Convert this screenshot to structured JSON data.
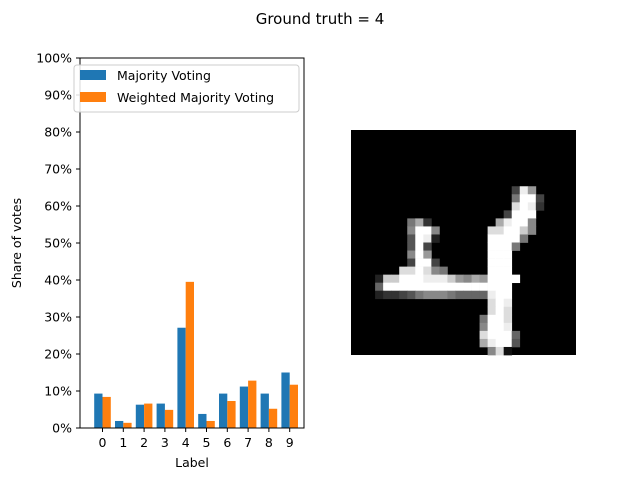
{
  "figure": {
    "suptitle": "Ground truth = 4"
  },
  "chart_data": {
    "type": "bar",
    "categories": [
      "0",
      "1",
      "2",
      "3",
      "4",
      "5",
      "6",
      "7",
      "8",
      "9"
    ],
    "series": [
      {
        "name": "Majority Voting",
        "color": "#1f77b4",
        "values": [
          0.093,
          0.019,
          0.063,
          0.066,
          0.271,
          0.038,
          0.093,
          0.112,
          0.093,
          0.15
        ]
      },
      {
        "name": "Weighted Majority Voting",
        "color": "#ff7f0e",
        "values": [
          0.084,
          0.014,
          0.066,
          0.049,
          0.395,
          0.019,
          0.073,
          0.128,
          0.052,
          0.117
        ]
      }
    ],
    "xlabel": "Label",
    "ylabel": "Share of votes",
    "ylim": [
      0,
      1
    ],
    "yticks": [
      "0%",
      "10%",
      "20%",
      "30%",
      "40%",
      "50%",
      "60%",
      "70%",
      "80%",
      "90%",
      "100%"
    ],
    "legend_position": "upper-left",
    "grid": false
  },
  "digit_image": {
    "description": "28x28 grayscale digit",
    "background": "#000000",
    "rows": [
      "0000000000000000000000000000",
      "0000000000000000000000000000",
      "0000000000000000000000000000",
      "0000000000000000000000000000",
      "0000000000000000000000000000",
      "0000000000000000000000000000",
      "0000000000000000000000000000",
      "000000000000000000004e900000",
      "000000000000000000007ff40000",
      "00000000000000000000dfe30000",
      "00000000000000000004fff00000",
      "00000007a300000000aeff800000",
      "00000008ff8000000ddffc800000",
      "00000005fe2000000ffff7000000",
      "00000005f40000000fff70000000",
      "00000008f90000000fff00000000",
      "00000004ff4000000fff00000000",
      "000000ddfd8700000fff00000000",
      "0002ccfffeeec98a9ffff0000000",
      "0006ffffffffffffffff00000000",
      "00023345788876666eff00000000",
      "00000000000000000dfe00000000",
      "00000000000000000dfd00000000",
      "00000000000000007ffd00000000",
      "00000000000000008ffe00000000",
      "0000000000000000dfff60000000",
      "0000000000000000aeff50000000",
      "000000000000000008d100000000"
    ]
  }
}
